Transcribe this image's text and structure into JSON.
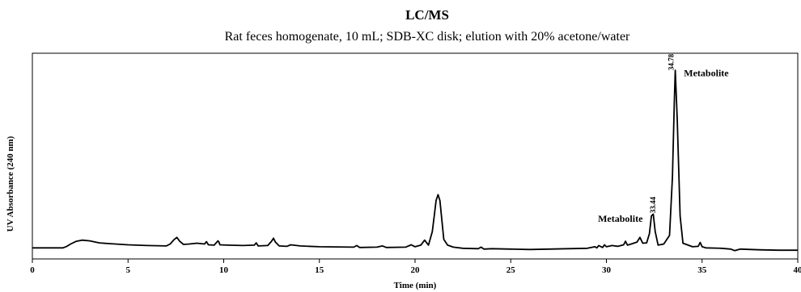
{
  "chart_data": {
    "type": "line",
    "title": "LC/MS",
    "subtitle": "Rat feces homogenate, 10 mL; SDB-XC disk; elution with 20% acetone/water",
    "xlabel": "Time (min)",
    "ylabel": "UV Absorbance (240 nm)",
    "xlim": [
      0,
      40
    ],
    "ylim": [
      0,
      100
    ],
    "xticks": [
      0,
      5,
      10,
      15,
      20,
      25,
      30,
      35,
      40
    ],
    "x_tick_labels": [
      "0",
      "5",
      "10",
      "15",
      "20",
      "25",
      "30",
      "35",
      "40"
    ],
    "grid": false,
    "series": [
      {
        "color": "#000000",
        "x": [
          0.0,
          1.6,
          1.8,
          2.0,
          2.3,
          2.6,
          3.0,
          3.5,
          4.0,
          5.0,
          6.0,
          7.0,
          7.2,
          7.4,
          7.55,
          7.7,
          7.9,
          8.2,
          8.6,
          9.0,
          9.1,
          9.2,
          9.5,
          9.7,
          9.75,
          9.8,
          10.2,
          11.0,
          11.6,
          11.7,
          11.8,
          12.3,
          12.5,
          12.6,
          12.7,
          12.9,
          13.3,
          13.5,
          14.0,
          15.0,
          16.8,
          16.95,
          17.1,
          18.0,
          18.3,
          18.5,
          19.5,
          19.8,
          20.0,
          20.3,
          20.5,
          20.7,
          20.9,
          21.0,
          21.1,
          21.2,
          21.3,
          21.4,
          21.5,
          21.7,
          22.0,
          22.5,
          23.3,
          23.45,
          23.6,
          24.0,
          25.0,
          26.0,
          27.0,
          28.0,
          29.0,
          29.4,
          29.5,
          29.6,
          29.8,
          29.9,
          30.0,
          30.3,
          30.6,
          30.9,
          31.0,
          31.1,
          31.3,
          31.6,
          31.75,
          31.9,
          32.1,
          32.25,
          32.35,
          32.45,
          32.55,
          32.7,
          33.0,
          33.3,
          33.45,
          33.55,
          33.6,
          33.7,
          33.85,
          34.0,
          34.5,
          34.8,
          34.9,
          35.0,
          35.2,
          36.0,
          36.5,
          36.7,
          37.0,
          38.0,
          39.0,
          40.0
        ],
        "y": [
          3.6,
          3.6,
          4.4,
          5.6,
          7.0,
          7.6,
          7.2,
          6.2,
          5.8,
          5.2,
          4.8,
          4.6,
          5.6,
          7.8,
          9.0,
          7.0,
          5.4,
          5.6,
          6.0,
          5.6,
          6.8,
          5.2,
          5.0,
          7.2,
          6.6,
          5.2,
          5.0,
          4.8,
          5.0,
          6.2,
          4.6,
          4.8,
          7.0,
          8.6,
          6.6,
          4.6,
          4.4,
          5.2,
          4.6,
          4.2,
          4.0,
          4.8,
          3.8,
          4.0,
          4.6,
          3.8,
          4.0,
          5.2,
          4.2,
          5.0,
          7.6,
          5.0,
          12.0,
          20.0,
          28.0,
          31.0,
          28.0,
          18.0,
          8.0,
          5.0,
          4.0,
          3.4,
          3.2,
          4.0,
          3.0,
          3.2,
          3.0,
          2.8,
          3.0,
          3.2,
          3.4,
          4.2,
          3.6,
          4.8,
          3.8,
          5.2,
          4.2,
          4.8,
          4.4,
          5.2,
          7.0,
          5.0,
          5.6,
          6.6,
          9.0,
          6.0,
          6.2,
          11.0,
          20.0,
          21.0,
          12.0,
          5.0,
          5.6,
          10.0,
          40.0,
          80.0,
          95.0,
          70.0,
          20.0,
          6.0,
          4.2,
          4.4,
          6.4,
          4.2,
          3.6,
          3.4,
          3.0,
          2.2,
          3.0,
          2.6,
          2.4,
          2.4
        ]
      }
    ],
    "annotations": [
      {
        "text": "Metabolite",
        "x": 34.05,
        "y": 92.0,
        "anchor": "start"
      },
      {
        "text": "Metabolite",
        "x": 31.9,
        "y": 17.0,
        "anchor": "end"
      }
    ],
    "peak_labels": [
      {
        "text": "34.78",
        "x": 33.5,
        "y": 95.0
      },
      {
        "text": "33.44",
        "x": 32.55,
        "y": 21.5
      }
    ]
  }
}
